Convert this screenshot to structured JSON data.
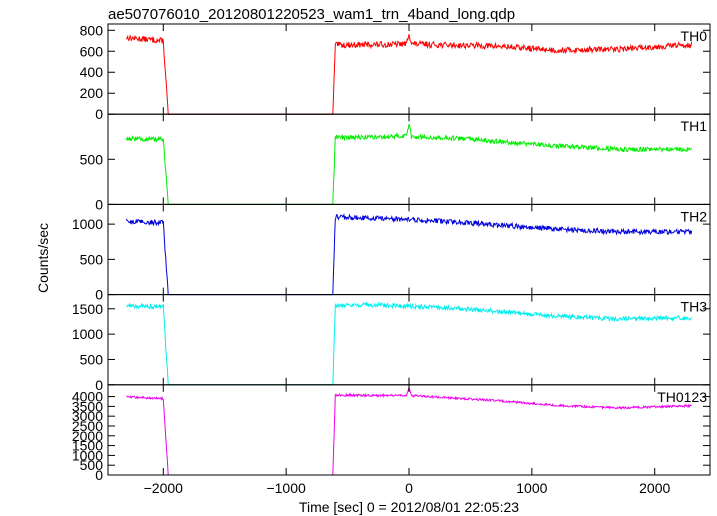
{
  "title": "ae507076010_20120801220523_wam1_trn_4band_long.qdp",
  "xlabel": "Time [sec] 0 = 2012/08/01 22:05:23",
  "ylabel": "Counts/sec",
  "chart_data": {
    "type": "line",
    "title": "ae507076010_20120801220523_wam1_trn_4band_long.qdp",
    "xlabel": "Time [sec] 0 = 2012/08/01 22:05:23",
    "ylabel": "Counts/sec",
    "xlim": [
      -2450,
      2450
    ],
    "xticks": [
      -2000,
      -1000,
      0,
      1000,
      2000
    ],
    "xtick_labels": [
      "−2000",
      "−1000",
      "0",
      "1000",
      "2000"
    ],
    "gap": [
      -1960,
      -620
    ],
    "panels": [
      {
        "name": "TH0",
        "color": "#ff0000",
        "ylim": [
          0,
          860
        ],
        "yticks": [
          0,
          200,
          400,
          600,
          800
        ],
        "ytick_labels": [
          "0",
          "200",
          "400",
          "600",
          "800"
        ],
        "x": [
          -2300,
          -2000,
          -1960,
          -620,
          -600,
          -200,
          -20,
          0,
          20,
          300,
          700,
          1200,
          1700,
          2300
        ],
        "y": [
          730,
          700,
          0,
          0,
          660,
          665,
          670,
          780,
          670,
          660,
          650,
          610,
          620,
          665
        ],
        "noise": 28
      },
      {
        "name": "TH1",
        "color": "#00ee00",
        "ylim": [
          0,
          1000
        ],
        "yticks": [
          0,
          500
        ],
        "ytick_labels": [
          "0",
          "500"
        ],
        "x": [
          -2300,
          -2000,
          -1960,
          -620,
          -600,
          -200,
          -20,
          0,
          20,
          300,
          700,
          1200,
          1700,
          2300
        ],
        "y": [
          730,
          720,
          0,
          0,
          740,
          750,
          760,
          900,
          750,
          740,
          700,
          650,
          610,
          610
        ],
        "noise": 25
      },
      {
        "name": "TH2",
        "color": "#0000dd",
        "ylim": [
          0,
          1280
        ],
        "yticks": [
          0,
          500,
          1000
        ],
        "ytick_labels": [
          "0",
          "500",
          "1000"
        ],
        "x": [
          -2300,
          -2000,
          -1960,
          -620,
          -600,
          -200,
          300,
          700,
          1200,
          1700,
          2300
        ],
        "y": [
          1040,
          1020,
          0,
          0,
          1100,
          1080,
          1040,
          990,
          930,
          890,
          890
        ],
        "noise": 35
      },
      {
        "name": "TH3",
        "color": "#00eeee",
        "ylim": [
          0,
          1780
        ],
        "yticks": [
          0,
          500,
          1000,
          1500
        ],
        "ytick_labels": [
          "0",
          "500",
          "1000",
          "1500"
        ],
        "x": [
          -2300,
          -2000,
          -1960,
          -620,
          -600,
          -200,
          300,
          700,
          1200,
          1700,
          2300
        ],
        "y": [
          1560,
          1540,
          0,
          0,
          1580,
          1570,
          1520,
          1450,
          1360,
          1300,
          1320
        ],
        "noise": 45
      },
      {
        "name": "TH0123",
        "color": "#ee00ee",
        "ylim": [
          0,
          4600
        ],
        "yticks": [
          0,
          500,
          1000,
          1500,
          2000,
          2500,
          3000,
          3500,
          4000
        ],
        "ytick_labels": [
          "0",
          "500",
          "1000",
          "1500",
          "2000",
          "2500",
          "3000",
          "3500",
          "4000"
        ],
        "x": [
          -2300,
          -2000,
          -1960,
          -620,
          -600,
          -200,
          -20,
          0,
          20,
          300,
          700,
          1200,
          1700,
          2300
        ],
        "y": [
          3980,
          3900,
          0,
          0,
          4080,
          4050,
          4050,
          4450,
          4050,
          3950,
          3800,
          3550,
          3420,
          3530
        ],
        "noise": 55
      }
    ]
  }
}
